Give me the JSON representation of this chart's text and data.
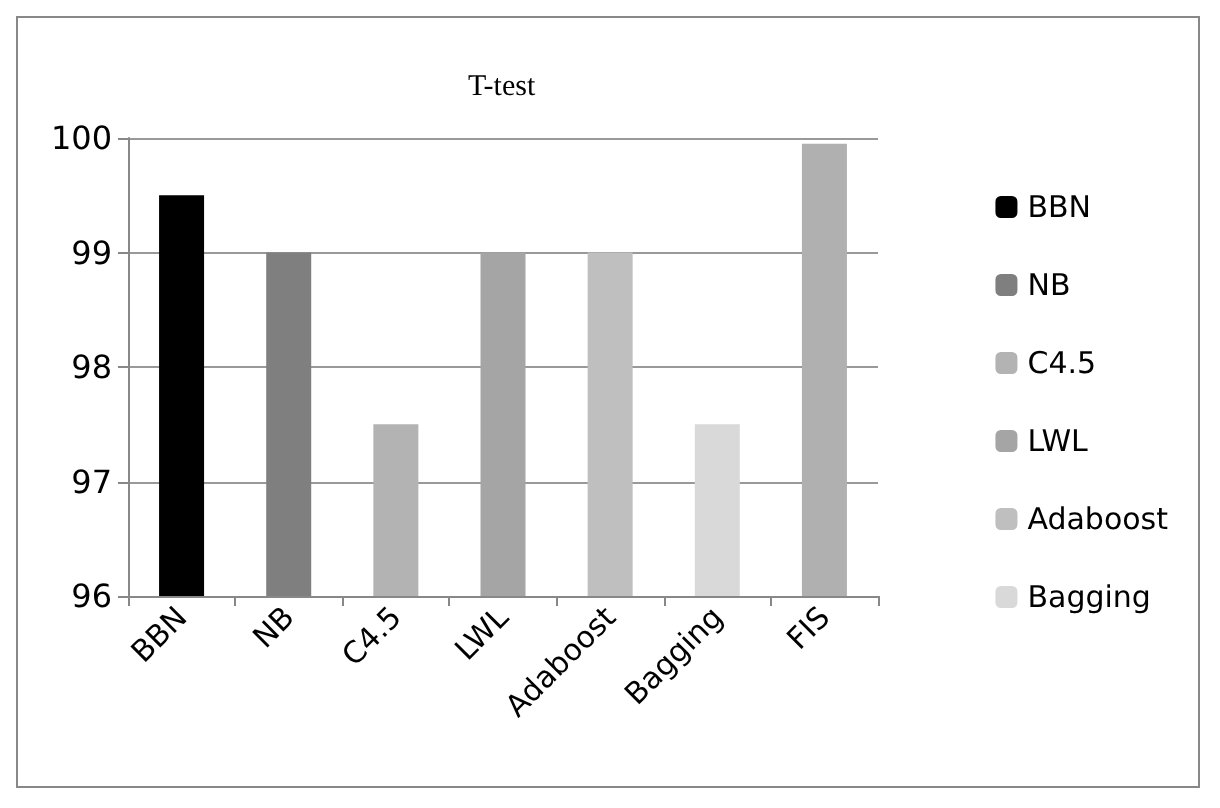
{
  "chart_data": {
    "type": "bar",
    "title": "T-test",
    "categories": [
      "BBN",
      "NB",
      "C4.5",
      "LWL",
      "Adaboost",
      "Bagging",
      "FIS"
    ],
    "series": [
      {
        "name": "BBN",
        "color": "#000000",
        "values": [
          99.5,
          null,
          null,
          null,
          null,
          null,
          null
        ]
      },
      {
        "name": "NB",
        "color": "#7f7f7f",
        "values": [
          null,
          99,
          null,
          null,
          null,
          null,
          null
        ]
      },
      {
        "name": "C4.5",
        "color": "#b3b3b3",
        "values": [
          null,
          null,
          97.5,
          null,
          null,
          null,
          null
        ]
      },
      {
        "name": "LWL",
        "color": "#a5a5a5",
        "values": [
          null,
          null,
          null,
          99,
          null,
          null,
          null
        ]
      },
      {
        "name": "Adaboost",
        "color": "#bfbfbf",
        "values": [
          null,
          null,
          null,
          null,
          99,
          null,
          null
        ]
      },
      {
        "name": "Bagging",
        "color": "#d9d9d9",
        "values": [
          null,
          null,
          null,
          null,
          null,
          97.5,
          null
        ]
      },
      {
        "color": "#b0b0b0",
        "values": [
          null,
          null,
          null,
          null,
          null,
          null,
          99.95
        ]
      }
    ],
    "ylim": [
      96,
      100
    ],
    "yticks": [
      96,
      97,
      98,
      99,
      100
    ],
    "grid": "y",
    "legend": "right"
  }
}
